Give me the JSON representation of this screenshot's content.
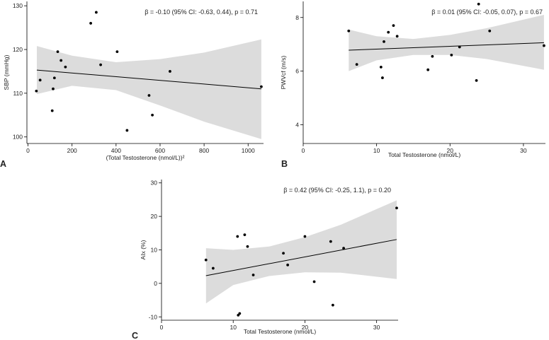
{
  "figure": {
    "panel_letters": [
      "A",
      "B",
      "C"
    ]
  },
  "chart_data": [
    {
      "panel": "A",
      "type": "scatter",
      "title": "",
      "xlabel": "(Total Testosterone (nmol/L))²",
      "ylabel": "SBP (mmHg)",
      "xlim": [
        -5,
        1070
      ],
      "ylim": [
        98.5,
        131
      ],
      "xticks": [
        0,
        200,
        400,
        600,
        800,
        1000
      ],
      "yticks": [
        100,
        110,
        120,
        130
      ],
      "annotation": "β = -0.10 (95% CI: -0.63, 0.44), p = 0.71",
      "points": [
        {
          "x": 38,
          "y": 110.5
        },
        {
          "x": 55,
          "y": 113
        },
        {
          "x": 110,
          "y": 106
        },
        {
          "x": 114,
          "y": 111
        },
        {
          "x": 120,
          "y": 113.5
        },
        {
          "x": 135,
          "y": 119.5
        },
        {
          "x": 150,
          "y": 117.5
        },
        {
          "x": 170,
          "y": 116
        },
        {
          "x": 285,
          "y": 126
        },
        {
          "x": 310,
          "y": 128.5
        },
        {
          "x": 330,
          "y": 116.5
        },
        {
          "x": 405,
          "y": 119.5
        },
        {
          "x": 450,
          "y": 101.5
        },
        {
          "x": 550,
          "y": 109.5
        },
        {
          "x": 565,
          "y": 105
        },
        {
          "x": 645,
          "y": 115
        },
        {
          "x": 1060,
          "y": 111.5
        }
      ],
      "fit_line": {
        "x": [
          40,
          1060
        ],
        "y": [
          115.3,
          111.0
        ]
      },
      "ci_band": {
        "x": [
          40,
          200,
          400,
          600,
          800,
          1060
        ],
        "lower": [
          109.8,
          111.7,
          110.7,
          107.2,
          103.5,
          99.5
        ],
        "upper": [
          120.8,
          118.6,
          117.1,
          117.8,
          119.3,
          122.3
        ]
      }
    },
    {
      "panel": "B",
      "type": "scatter",
      "title": "",
      "xlabel": "Total Testosterone (nmol/L)",
      "ylabel": "PWVcf (m/s)",
      "xlim": [
        0,
        33
      ],
      "ylim": [
        3.3,
        8.6
      ],
      "xticks": [
        0,
        10,
        20,
        30
      ],
      "yticks": [
        4,
        6,
        8
      ],
      "annotation": "β = 0.01 (95% CI: -0.05, 0.07), p = 0.67",
      "points": [
        {
          "x": 6.2,
          "y": 7.5
        },
        {
          "x": 7.3,
          "y": 6.25
        },
        {
          "x": 10.6,
          "y": 6.15
        },
        {
          "x": 10.8,
          "y": 5.75
        },
        {
          "x": 11.0,
          "y": 7.1
        },
        {
          "x": 11.6,
          "y": 7.45
        },
        {
          "x": 12.3,
          "y": 7.7
        },
        {
          "x": 12.8,
          "y": 7.3
        },
        {
          "x": 17.0,
          "y": 6.05
        },
        {
          "x": 17.6,
          "y": 6.55
        },
        {
          "x": 20.2,
          "y": 6.6
        },
        {
          "x": 21.3,
          "y": 6.9
        },
        {
          "x": 23.6,
          "y": 5.65
        },
        {
          "x": 23.9,
          "y": 8.5
        },
        {
          "x": 25.4,
          "y": 7.5
        },
        {
          "x": 32.8,
          "y": 6.95
        }
      ],
      "fit_line": {
        "x": [
          6.2,
          32.8
        ],
        "y": [
          6.78,
          7.06
        ]
      },
      "ci_band": {
        "x": [
          6.2,
          10,
          15,
          20,
          25,
          32.8
        ],
        "lower": [
          6.0,
          6.4,
          6.6,
          6.6,
          6.45,
          6.05
        ],
        "upper": [
          7.55,
          7.3,
          7.2,
          7.35,
          7.6,
          8.1
        ]
      }
    },
    {
      "panel": "C",
      "type": "scatter",
      "title": "",
      "xlabel": "Total Testosterone (nmol/L)",
      "ylabel": "AIx (%)",
      "xlim": [
        0,
        33
      ],
      "ylim": [
        -11,
        31
      ],
      "xticks": [
        0,
        10,
        20,
        30
      ],
      "yticks": [
        -10,
        0,
        10,
        20,
        30
      ],
      "annotation": "β = 0.42 (95% CI: -0.25, 1.1), p = 0.20",
      "points": [
        {
          "x": 6.2,
          "y": 7
        },
        {
          "x": 7.2,
          "y": 4.5
        },
        {
          "x": 10.6,
          "y": 14
        },
        {
          "x": 10.7,
          "y": -9.5
        },
        {
          "x": 10.9,
          "y": -9
        },
        {
          "x": 11.6,
          "y": 14.5
        },
        {
          "x": 12.0,
          "y": 11
        },
        {
          "x": 12.8,
          "y": 2.5
        },
        {
          "x": 17.0,
          "y": 9
        },
        {
          "x": 17.6,
          "y": 5.5
        },
        {
          "x": 20.0,
          "y": 14
        },
        {
          "x": 21.3,
          "y": 0.5
        },
        {
          "x": 23.6,
          "y": 12.5
        },
        {
          "x": 23.9,
          "y": -6.5
        },
        {
          "x": 25.4,
          "y": 10.5
        },
        {
          "x": 32.8,
          "y": 22.5
        }
      ],
      "fit_line": {
        "x": [
          6.2,
          32.8
        ],
        "y": [
          2.3,
          13.1
        ]
      },
      "ci_band": {
        "x": [
          6.2,
          10,
          15,
          20,
          25,
          32.8
        ],
        "lower": [
          -6.0,
          -0.5,
          2.2,
          3.3,
          3.2,
          1.3
        ],
        "upper": [
          10.5,
          10.0,
          11.0,
          13.8,
          17.5,
          24.8
        ]
      }
    }
  ]
}
